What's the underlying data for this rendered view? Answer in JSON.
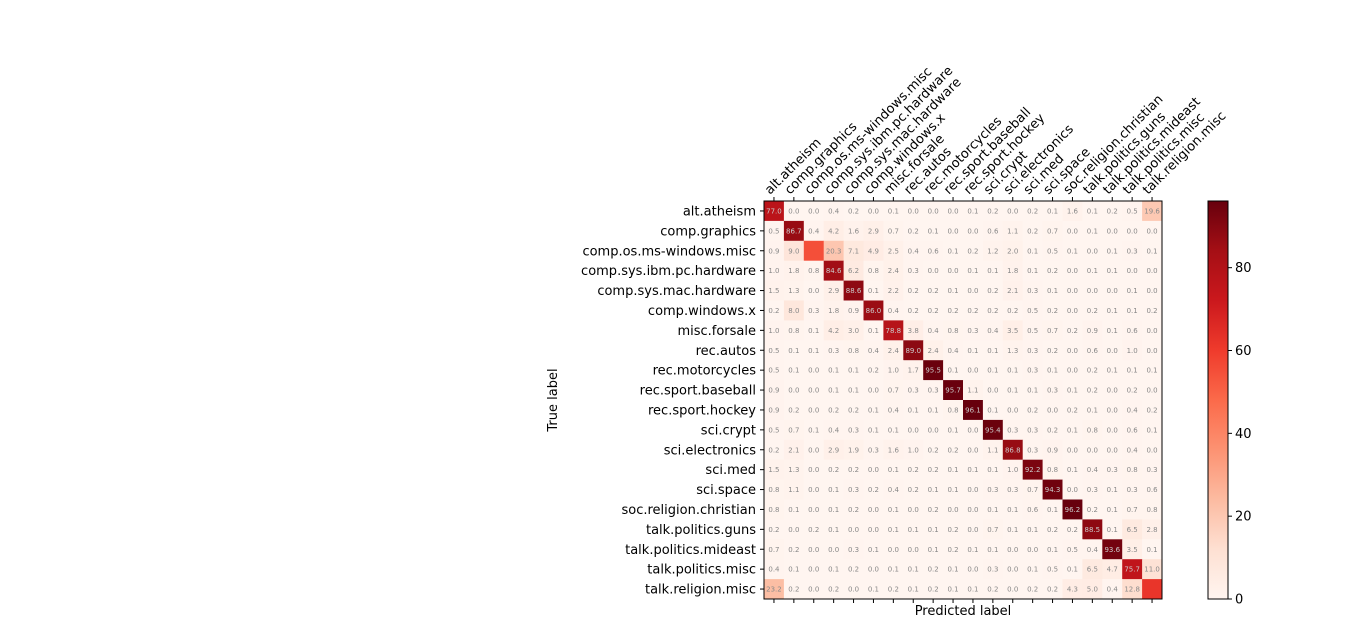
{
  "chart_data": {
    "type": "heatmap",
    "title": "",
    "xlabel": "Predicted label",
    "ylabel": "True label",
    "x_tick_position": "top",
    "x_tick_rotation": "45",
    "colormap": "Reds",
    "vmin": 0,
    "vmax": 96.1,
    "colorbar_ticks": [
      "0",
      "20",
      "40",
      "60",
      "80"
    ],
    "classes": [
      "alt.atheism",
      "comp.graphics",
      "comp.os.ms-windows.misc",
      "comp.sys.ibm.pc.hardware",
      "comp.sys.mac.hardware",
      "comp.windows.x",
      "misc.forsale",
      "rec.autos",
      "rec.motorcycles",
      "rec.sport.baseball",
      "rec.sport.hockey",
      "sci.crypt",
      "sci.electronics",
      "sci.med",
      "sci.space",
      "soc.religion.christian",
      "talk.politics.guns",
      "talk.politics.mideast",
      "talk.politics.misc",
      "talk.religion.misc"
    ],
    "matrix": [
      [
        "77.0",
        "0.0",
        "0.0",
        "0.4",
        "0.2",
        "0.0",
        "0.1",
        "0.0",
        "0.0",
        "0.0",
        "0.1",
        "0.2",
        "0.0",
        "0.2",
        "0.1",
        "1.6",
        "0.1",
        "0.2",
        "0.5",
        "19.6"
      ],
      [
        "0.5",
        "86.7",
        "0.4",
        "4.2",
        "1.6",
        "2.9",
        "0.7",
        "0.2",
        "0.1",
        "0.0",
        "0.0",
        "0.6",
        "1.1",
        "0.2",
        "0.7",
        "0.0",
        "0.1",
        "0.0",
        "0.0",
        "0.0"
      ],
      [
        "0.9",
        "9.0",
        "",
        "20.3",
        "7.1",
        "4.9",
        "2.5",
        "0.4",
        "0.6",
        "0.1",
        "0.2",
        "1.2",
        "2.0",
        "0.1",
        "0.5",
        "0.1",
        "0.0",
        "0.1",
        "0.3",
        "0.1"
      ],
      [
        "1.0",
        "1.8",
        "0.8",
        "84.6",
        "6.2",
        "0.8",
        "2.4",
        "0.3",
        "0.0",
        "0.0",
        "0.1",
        "0.1",
        "1.8",
        "0.1",
        "0.2",
        "0.0",
        "0.1",
        "0.1",
        "0.0",
        "0.0"
      ],
      [
        "1.5",
        "1.3",
        "0.0",
        "2.9",
        "88.6",
        "0.1",
        "2.2",
        "0.2",
        "0.2",
        "0.1",
        "0.0",
        "0.2",
        "2.1",
        "0.3",
        "0.1",
        "0.0",
        "0.0",
        "0.0",
        "0.1",
        "0.0"
      ],
      [
        "0.2",
        "8.0",
        "0.3",
        "1.8",
        "0.9",
        "86.0",
        "0.4",
        "0.2",
        "0.2",
        "0.2",
        "0.2",
        "0.2",
        "0.2",
        "0.5",
        "0.2",
        "0.0",
        "0.2",
        "0.1",
        "0.1",
        "0.2"
      ],
      [
        "1.0",
        "0.8",
        "0.1",
        "4.2",
        "3.0",
        "0.1",
        "78.8",
        "3.8",
        "0.4",
        "0.8",
        "0.3",
        "0.4",
        "3.5",
        "0.5",
        "0.7",
        "0.2",
        "0.9",
        "0.1",
        "0.6",
        "0.0"
      ],
      [
        "0.5",
        "0.1",
        "0.1",
        "0.3",
        "0.8",
        "0.4",
        "2.4",
        "89.0",
        "2.4",
        "0.4",
        "0.1",
        "0.1",
        "1.3",
        "0.3",
        "0.2",
        "0.0",
        "0.6",
        "0.0",
        "1.0",
        "0.0"
      ],
      [
        "0.5",
        "0.1",
        "0.0",
        "0.1",
        "0.1",
        "0.2",
        "1.0",
        "1.7",
        "95.5",
        "0.1",
        "0.0",
        "0.1",
        "0.1",
        "0.3",
        "0.1",
        "0.0",
        "0.2",
        "0.1",
        "0.1",
        "0.1"
      ],
      [
        "0.9",
        "0.0",
        "0.0",
        "0.1",
        "0.1",
        "0.0",
        "0.7",
        "0.3",
        "0.3",
        "95.7",
        "1.1",
        "0.0",
        "0.1",
        "0.1",
        "0.3",
        "0.1",
        "0.2",
        "0.0",
        "0.2",
        "0.0"
      ],
      [
        "0.9",
        "0.2",
        "0.0",
        "0.2",
        "0.2",
        "0.1",
        "0.4",
        "0.1",
        "0.1",
        "0.8",
        "96.1",
        "0.1",
        "0.0",
        "0.2",
        "0.0",
        "0.2",
        "0.1",
        "0.0",
        "0.4",
        "0.2"
      ],
      [
        "0.5",
        "0.7",
        "0.1",
        "0.4",
        "0.3",
        "0.1",
        "0.1",
        "0.0",
        "0.0",
        "0.1",
        "0.0",
        "95.4",
        "0.3",
        "0.3",
        "0.2",
        "0.1",
        "0.8",
        "0.0",
        "0.6",
        "0.1"
      ],
      [
        "0.2",
        "2.1",
        "0.0",
        "2.9",
        "1.9",
        "0.3",
        "1.6",
        "1.0",
        "0.2",
        "0.2",
        "0.0",
        "1.1",
        "86.8",
        "0.3",
        "0.9",
        "0.0",
        "0.0",
        "0.0",
        "0.4",
        "0.0"
      ],
      [
        "1.5",
        "1.3",
        "0.0",
        "0.2",
        "0.2",
        "0.0",
        "0.1",
        "0.2",
        "0.2",
        "0.1",
        "0.1",
        "0.1",
        "1.0",
        "92.2",
        "0.8",
        "0.1",
        "0.4",
        "0.3",
        "0.8",
        "0.3"
      ],
      [
        "0.8",
        "1.1",
        "0.0",
        "0.1",
        "0.3",
        "0.2",
        "0.4",
        "0.2",
        "0.1",
        "0.1",
        "0.0",
        "0.3",
        "0.3",
        "0.7",
        "94.3",
        "0.0",
        "0.3",
        "0.1",
        "0.3",
        "0.6"
      ],
      [
        "0.8",
        "0.1",
        "0.0",
        "0.1",
        "0.2",
        "0.0",
        "0.1",
        "0.0",
        "0.2",
        "0.0",
        "0.0",
        "0.1",
        "0.1",
        "0.6",
        "0.1",
        "96.2",
        "0.2",
        "0.1",
        "0.7",
        "0.8"
      ],
      [
        "0.2",
        "0.0",
        "0.2",
        "0.1",
        "0.0",
        "0.0",
        "0.1",
        "0.1",
        "0.1",
        "0.2",
        "0.0",
        "0.7",
        "0.1",
        "0.1",
        "0.2",
        "0.2",
        "88.5",
        "0.1",
        "6.5",
        "2.8"
      ],
      [
        "0.7",
        "0.2",
        "0.0",
        "0.0",
        "0.3",
        "0.1",
        "0.0",
        "0.0",
        "0.1",
        "0.2",
        "0.1",
        "0.1",
        "0.0",
        "0.0",
        "0.1",
        "0.5",
        "0.4",
        "93.6",
        "3.5",
        "0.1"
      ],
      [
        "0.4",
        "0.1",
        "0.0",
        "0.1",
        "0.2",
        "0.0",
        "0.1",
        "0.1",
        "0.2",
        "0.1",
        "0.0",
        "0.3",
        "0.0",
        "0.1",
        "0.5",
        "0.1",
        "6.5",
        "4.7",
        "75.7",
        "11.0"
      ],
      [
        "23.2",
        "0.2",
        "0.0",
        "0.2",
        "0.0",
        "0.1",
        "0.2",
        "0.1",
        "0.2",
        "0.1",
        "0.1",
        "0.2",
        "0.0",
        "0.2",
        "0.2",
        "4.3",
        "5.0",
        "0.4",
        "12.8",
        ""
      ]
    ],
    "cell_values_for_color": {
      "2,2": 55.0,
      "19,19": 62.0
    }
  }
}
